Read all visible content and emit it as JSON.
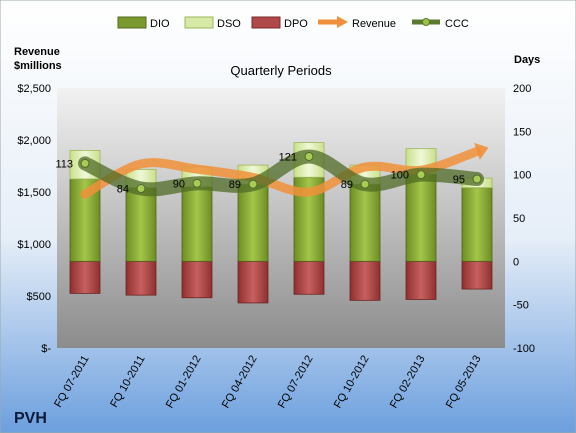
{
  "chart_data": {
    "type": "bar",
    "title": "Quarterly Periods",
    "company": "PVH",
    "left_axis_label_line1": "Revenue",
    "left_axis_label_line2": "$millions",
    "right_axis_label": "Days",
    "categories": [
      "FQ 07-2011",
      "FQ 10-2011",
      "FQ 01-2012",
      "FQ 04-2012",
      "FQ 07-2012",
      "FQ 10-2012",
      "FQ 02-2013",
      "FQ 05-2013"
    ],
    "left_ylim": [
      0,
      2500
    ],
    "left_ticks": [
      0,
      500,
      1000,
      1500,
      2000,
      2500
    ],
    "left_tick_labels": [
      "$-",
      "$500",
      "$1,000",
      "$1,500",
      "$2,000",
      "$2,500"
    ],
    "right_ylim": [
      -100,
      200
    ],
    "right_ticks": [
      -100,
      -50,
      0,
      50,
      100,
      150,
      200
    ],
    "right_tick_labels": [
      "-100",
      "-50",
      "0",
      "50",
      "100",
      "150",
      "200"
    ],
    "series": [
      {
        "name": "DIO",
        "axis": "days",
        "color": "#7a9a2f",
        "values": [
          95,
          85,
          86,
          89,
          97,
          89,
          101,
          85
        ]
      },
      {
        "name": "DSO",
        "axis": "days",
        "color": "#d7e9a6",
        "values": [
          33,
          21,
          23,
          22,
          40,
          22,
          29,
          11
        ]
      },
      {
        "name": "DPO",
        "axis": "days",
        "color": "#b04848",
        "values": [
          -37,
          -39,
          -42,
          -48,
          -38,
          -45,
          -44,
          -32
        ]
      },
      {
        "name": "Revenue",
        "axis": "revenue",
        "color": "#f0903a",
        "values": [
          1480,
          1770,
          1720,
          1640,
          1500,
          1740,
          1710,
          1890
        ]
      },
      {
        "name": "CCC",
        "axis": "days",
        "color": "#5b7a2e",
        "values": [
          113,
          84,
          90,
          89,
          121,
          89,
          100,
          95
        ]
      }
    ],
    "ccc_labels": [
      "113",
      "84",
      "90",
      "89",
      "121",
      "89",
      "100",
      "95"
    ],
    "legend_position": "top",
    "grid": false
  }
}
